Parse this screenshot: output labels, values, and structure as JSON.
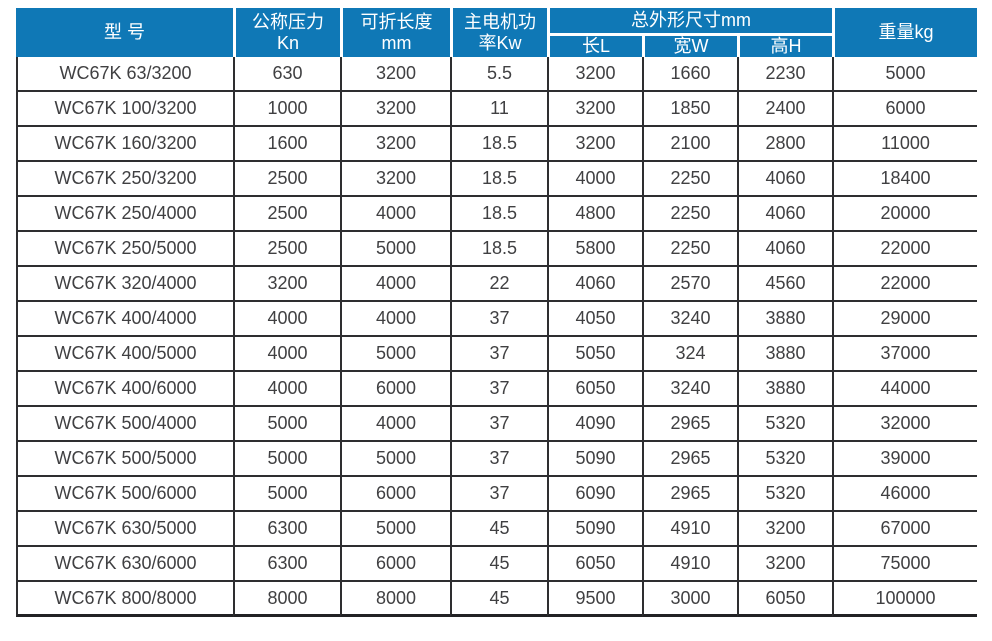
{
  "colors": {
    "header_bg": "#0f78b6",
    "header_text": "#ffffff",
    "body_text": "#404042",
    "grid_line": "#2e2e30"
  },
  "table": {
    "headers": {
      "model": "型 号",
      "pressure_line1": "公称压力",
      "pressure_line2": "Kn",
      "fold_length_line1": "可折长度",
      "fold_length_line2": "mm",
      "motor_power_line1": "主电机功",
      "motor_power_line2": "率Kw",
      "dimensions": "总外形尺寸mm",
      "dim_length": "长L",
      "dim_width": "宽W",
      "dim_height": "高H",
      "weight": "重量kg"
    },
    "rows": [
      [
        "WC67K 63/3200",
        "630",
        "3200",
        "5.5",
        "3200",
        "1660",
        "2230",
        "5000"
      ],
      [
        "WC67K 100/3200",
        "1000",
        "3200",
        "11",
        "3200",
        "1850",
        "2400",
        "6000"
      ],
      [
        "WC67K 160/3200",
        "1600",
        "3200",
        "18.5",
        "3200",
        "2100",
        "2800",
        "11000"
      ],
      [
        "WC67K 250/3200",
        "2500",
        "3200",
        "18.5",
        "4000",
        "2250",
        "4060",
        "18400"
      ],
      [
        "WC67K 250/4000",
        "2500",
        "4000",
        "18.5",
        "4800",
        "2250",
        "4060",
        "20000"
      ],
      [
        "WC67K 250/5000",
        "2500",
        "5000",
        "18.5",
        "5800",
        "2250",
        "4060",
        "22000"
      ],
      [
        "WC67K 320/4000",
        "3200",
        "4000",
        "22",
        "4060",
        "2570",
        "4560",
        "22000"
      ],
      [
        "WC67K 400/4000",
        "4000",
        "4000",
        "37",
        "4050",
        "3240",
        "3880",
        "29000"
      ],
      [
        "WC67K 400/5000",
        "4000",
        "5000",
        "37",
        "5050",
        "324",
        "3880",
        "37000"
      ],
      [
        "WC67K 400/6000",
        "4000",
        "6000",
        "37",
        "6050",
        "3240",
        "3880",
        "44000"
      ],
      [
        "WC67K 500/4000",
        "5000",
        "4000",
        "37",
        "4090",
        "2965",
        "5320",
        "32000"
      ],
      [
        "WC67K 500/5000",
        "5000",
        "5000",
        "37",
        "5090",
        "2965",
        "5320",
        "39000"
      ],
      [
        "WC67K 500/6000",
        "5000",
        "6000",
        "37",
        "6090",
        "2965",
        "5320",
        "46000"
      ],
      [
        "WC67K 630/5000",
        "6300",
        "5000",
        "45",
        "5090",
        "4910",
        "3200",
        "67000"
      ],
      [
        "WC67K 630/6000",
        "6300",
        "6000",
        "45",
        "6050",
        "4910",
        "3200",
        "75000"
      ],
      [
        "WC67K 800/8000",
        "8000",
        "8000",
        "45",
        "9500",
        "3000",
        "6050",
        "100000"
      ]
    ]
  }
}
